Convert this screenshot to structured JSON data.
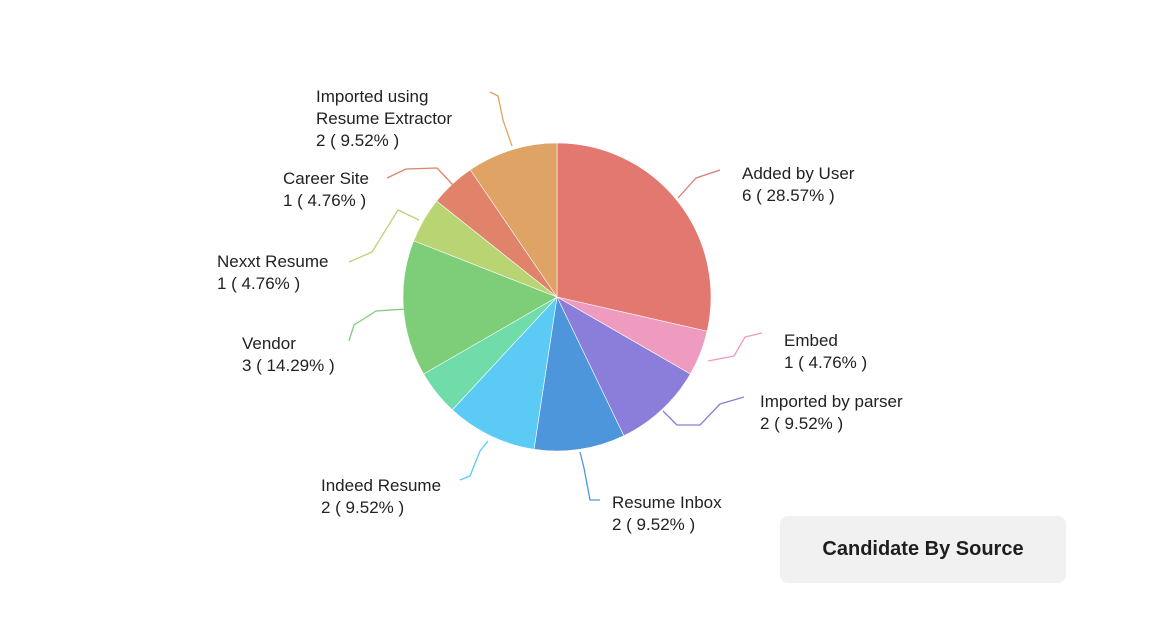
{
  "caption": "Candidate By Source",
  "chart_data": {
    "type": "pie",
    "total": 21,
    "slices": [
      {
        "name": "Added by User",
        "value": 6,
        "percent_label": "6 ( 28.57% )",
        "color": "#e27870"
      },
      {
        "name": "Embed",
        "value": 1,
        "percent_label": "1 ( 4.76% )",
        "color": "#ef9abf"
      },
      {
        "name": "Imported by parser",
        "value": 2,
        "percent_label": "2 ( 9.52% )",
        "color": "#8b7edb"
      },
      {
        "name": "Resume Inbox",
        "value": 2,
        "percent_label": "2 ( 9.52% )",
        "color": "#4e96dc"
      },
      {
        "name": "Indeed Resume",
        "value": 2,
        "percent_label": "2 ( 9.52% )",
        "color": "#5bcbf6"
      },
      {
        "name": "",
        "value": 1,
        "percent_label": "",
        "color": "#6fdcaa"
      },
      {
        "name": "Vendor",
        "value": 3,
        "percent_label": "3 ( 14.29% )",
        "color": "#7ecd78"
      },
      {
        "name": "Nexxt Resume",
        "value": 1,
        "percent_label": "1 ( 4.76% )",
        "color": "#b9d573"
      },
      {
        "name": "Career Site",
        "value": 1,
        "percent_label": "1 ( 4.76% )",
        "color": "#e0836a"
      },
      {
        "name": "Imported using Resume Extractor",
        "value": 2,
        "percent_label": "2 ( 9.52% )",
        "color": "#dea365"
      }
    ]
  }
}
